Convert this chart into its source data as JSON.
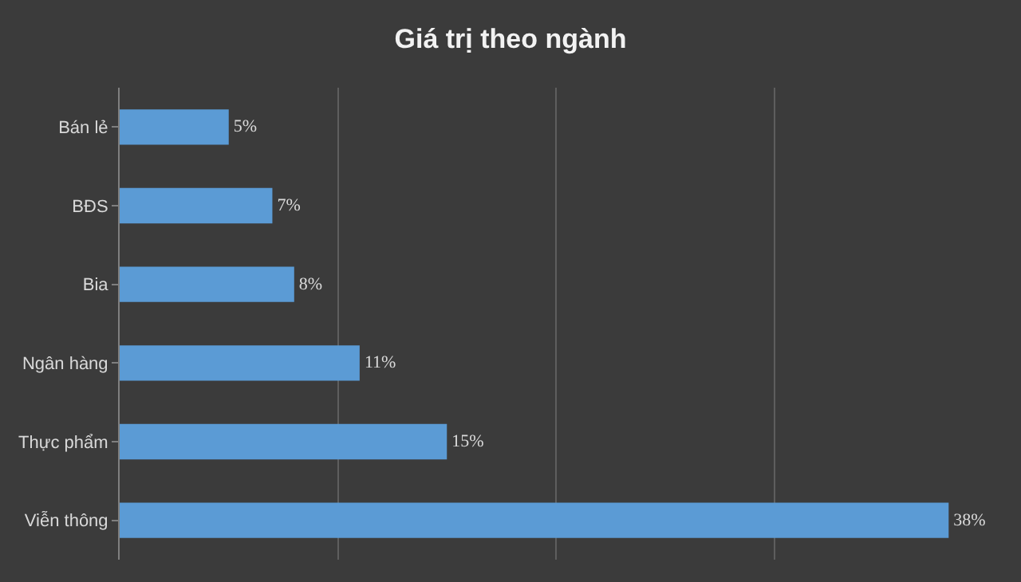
{
  "chart_data": {
    "type": "bar",
    "orientation": "horizontal",
    "title": "Giá trị theo ngành",
    "categories": [
      "Bán lẻ",
      "BĐS",
      "Bia",
      "Ngân hàng",
      "Thực phẩm",
      "Viễn thông"
    ],
    "values": [
      5,
      7,
      8,
      11,
      15,
      38
    ],
    "value_labels": [
      "5%",
      "7%",
      "8%",
      "11%",
      "15%",
      "38%"
    ],
    "color": "#5b9bd5",
    "grid": "x",
    "tick_labels": "y",
    "legend": false
  }
}
